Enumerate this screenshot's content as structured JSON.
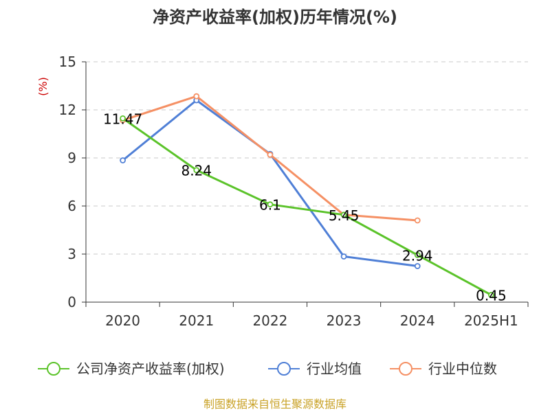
{
  "chart_data": {
    "type": "line",
    "title": "净资产收益率(加权)历年情况(%)",
    "ylabel": "(%)",
    "xlabel": "",
    "categories": [
      "2020",
      "2021",
      "2022",
      "2023",
      "2024",
      "2025H1"
    ],
    "ylim": [
      0,
      15
    ],
    "yticks": [
      0,
      3,
      6,
      9,
      12,
      15
    ],
    "grid": true,
    "legend_position": "bottom",
    "series": [
      {
        "name": "公司净资产收益率(加权)",
        "color": "#5bc32a",
        "values": [
          11.47,
          8.24,
          6.1,
          5.45,
          2.94,
          0.45
        ],
        "labels": [
          "11.47",
          "8.24",
          "6.1",
          "5.45",
          "2.94",
          "0.45"
        ]
      },
      {
        "name": "行业均值",
        "color": "#4f7fd6",
        "values": [
          8.85,
          12.6,
          9.25,
          2.85,
          2.25,
          null
        ]
      },
      {
        "name": "行业中位数",
        "color": "#f59064",
        "values": [
          11.35,
          12.85,
          9.2,
          5.45,
          5.1,
          null
        ]
      }
    ],
    "source": "制图数据来自恒生聚源数据库"
  }
}
